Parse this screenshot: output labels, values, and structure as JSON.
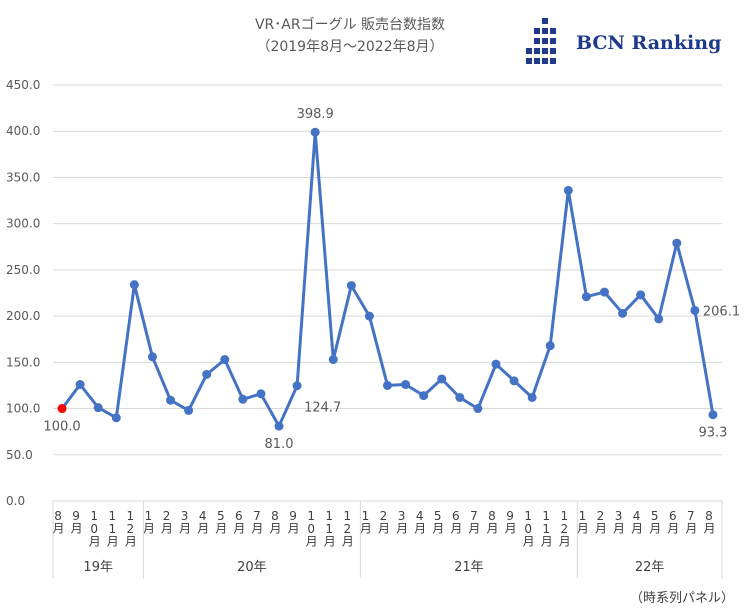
{
  "title_line1": "VR･ARゴーグル 販売台数指数",
  "title_line2": "（2019年8月～2022年8月）",
  "brand": "BCN Ranking",
  "footnote": "（時系列パネル）",
  "colors": {
    "line": "#4472c4",
    "first_point": "#ff0000",
    "grid": "#d9d9d9",
    "text": "#595959"
  },
  "chart_data": {
    "type": "line",
    "ylim": [
      0,
      450
    ],
    "yticks": [
      "0.0",
      "50.0",
      "100.0",
      "150.0",
      "200.0",
      "250.0",
      "300.0",
      "350.0",
      "400.0",
      "450.0"
    ],
    "grid": true,
    "categories": [
      "8月",
      "9月",
      "10月",
      "11月",
      "12月",
      "1月",
      "2月",
      "3月",
      "4月",
      "5月",
      "6月",
      "7月",
      "8月",
      "9月",
      "10月",
      "11月",
      "12月",
      "1月",
      "2月",
      "3月",
      "4月",
      "5月",
      "6月",
      "7月",
      "8月",
      "9月",
      "10月",
      "11月",
      "12月",
      "1月",
      "2月",
      "3月",
      "4月",
      "5月",
      "6月",
      "7月",
      "8月"
    ],
    "year_groups": [
      {
        "label": "19年",
        "count": 5
      },
      {
        "label": "20年",
        "count": 12
      },
      {
        "label": "21年",
        "count": 12
      },
      {
        "label": "22年",
        "count": 8
      }
    ],
    "series": [
      {
        "values": [
          100.0,
          126,
          101,
          90,
          234,
          156,
          109,
          98,
          137,
          153,
          110,
          116,
          81.0,
          124.7,
          398.9,
          153,
          233,
          200,
          125,
          126,
          114,
          132,
          112,
          100,
          148,
          130,
          112,
          168,
          336,
          221,
          226,
          203,
          223,
          197,
          279,
          206.1,
          93.3
        ]
      }
    ],
    "data_labels": [
      {
        "index": 0,
        "text": "100.0",
        "pos": "below"
      },
      {
        "index": 12,
        "text": "81.0",
        "pos": "below"
      },
      {
        "index": 13,
        "text": "124.7",
        "pos": "right-below"
      },
      {
        "index": 14,
        "text": "398.9",
        "pos": "above"
      },
      {
        "index": 35,
        "text": "206.1",
        "pos": "right"
      },
      {
        "index": 36,
        "text": "93.3",
        "pos": "below"
      }
    ]
  }
}
